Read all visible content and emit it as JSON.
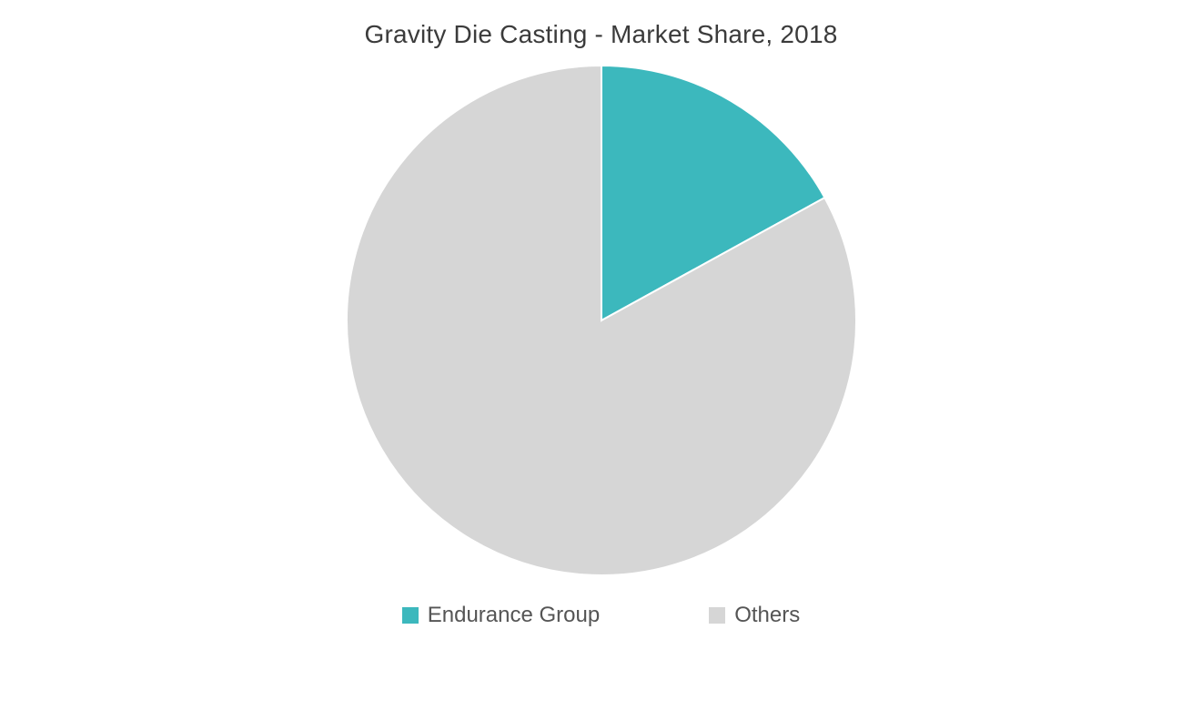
{
  "chart": {
    "type": "pie",
    "title": "Gravity Die Casting - Market Share, 2018",
    "title_fontsize": 28,
    "title_color": "#3b3b3b",
    "background_color": "#ffffff",
    "stroke_color": "#ffffff",
    "stroke_width": 2,
    "radius": 280,
    "slices": [
      {
        "label": "Endurance Group",
        "value": 17,
        "color": "#3cb8bd"
      },
      {
        "label": "Others",
        "value": 83,
        "color": "#d6d6d6"
      }
    ],
    "legend": {
      "fontsize": 24,
      "text_color": "#555555",
      "swatch_size": 18
    }
  }
}
